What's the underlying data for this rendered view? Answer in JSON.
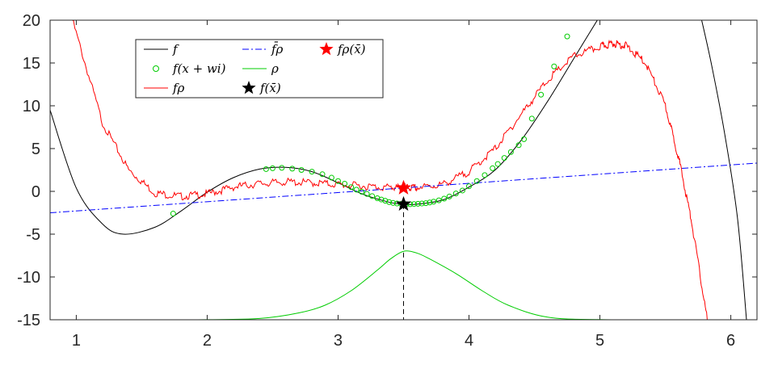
{
  "chart_data": {
    "type": "line",
    "title": "",
    "xlabel": "",
    "ylabel": "",
    "xlim": [
      0.8,
      6.2
    ],
    "ylim": [
      -15,
      20
    ],
    "xticks": [
      1,
      2,
      3,
      4,
      5,
      6
    ],
    "yticks": [
      20,
      15,
      10,
      5,
      0,
      -5,
      -10,
      -15
    ],
    "grid": false,
    "legend_position": "top-left",
    "x_bar": 3.5,
    "f_at_x_bar": -1.5,
    "f_rho_at_x_bar": 0.4,
    "series": [
      {
        "name": "f",
        "color": "#000000",
        "style": "solid",
        "x": [
          0.8,
          1.0,
          1.2,
          1.36,
          1.6,
          1.8,
          2.0,
          2.2,
          2.4,
          2.6,
          2.8,
          3.0,
          3.2,
          3.4,
          3.5,
          3.6,
          3.8,
          4.0,
          4.2,
          4.4,
          4.6,
          4.8,
          5.0
        ],
        "y": [
          9.5,
          0.4,
          -3.8,
          -5.0,
          -4.2,
          -2.3,
          -0.1,
          1.6,
          2.6,
          2.8,
          2.3,
          1.0,
          -0.4,
          -1.3,
          -1.5,
          -1.5,
          -1.0,
          0.5,
          2.5,
          6.0,
          10.5,
          15.5,
          20.5
        ]
      },
      {
        "name": "f",
        "color": "#000000",
        "style": "solid",
        "x": [
          5.77,
          5.85,
          5.95,
          6.05,
          6.12
        ],
        "y": [
          20.5,
          15.0,
          7.0,
          -3.0,
          -15.0
        ]
      },
      {
        "name": "f_ρ",
        "color": "#ff0000",
        "style": "solid",
        "x": [
          0.97,
          1.2,
          1.4,
          1.6,
          1.8,
          2.0,
          2.2,
          2.4,
          2.6,
          2.8,
          3.0,
          3.2,
          3.4,
          3.5,
          3.6,
          3.8,
          4.0,
          4.2,
          4.4,
          4.6,
          4.8,
          5.0,
          5.1,
          5.2,
          5.35,
          5.5,
          5.6,
          5.7,
          5.82
        ],
        "y": [
          20.0,
          8.0,
          2.5,
          -0.2,
          -0.6,
          -0.3,
          0.5,
          0.9,
          1.1,
          1.0,
          0.8,
          0.6,
          0.45,
          0.4,
          0.4,
          0.8,
          2.3,
          5.0,
          9.0,
          13.0,
          15.8,
          16.9,
          17.3,
          17.0,
          15.0,
          10.0,
          4.0,
          -3.5,
          -15.0
        ]
      },
      {
        "name": "f̄_ρ",
        "color": "#0000ff",
        "style": "dashdot",
        "x": [
          0.8,
          6.2
        ],
        "y": [
          -2.5,
          3.3
        ]
      },
      {
        "name": "ρ",
        "color": "#00cc00",
        "style": "solid",
        "x": [
          0.8,
          1.5,
          2.0,
          2.4,
          2.7,
          2.9,
          3.1,
          3.3,
          3.4,
          3.5,
          3.6,
          3.7,
          3.9,
          4.1,
          4.3,
          4.6,
          5.0,
          5.5,
          6.2
        ],
        "y": [
          -15.0,
          -15.0,
          -14.99,
          -14.85,
          -14.2,
          -13.3,
          -11.6,
          -9.2,
          -7.9,
          -7.0,
          -7.2,
          -7.9,
          -9.6,
          -11.6,
          -13.3,
          -14.7,
          -14.98,
          -15.0,
          -15.0
        ]
      },
      {
        "name": "f(x + w_i)",
        "color": "#00cc00",
        "style": "markers",
        "x": [
          1.74,
          2.45,
          2.5,
          2.57,
          2.65,
          2.72,
          2.8,
          2.88,
          2.95,
          3.0,
          3.05,
          3.1,
          3.14,
          3.18,
          3.22,
          3.26,
          3.3,
          3.33,
          3.36,
          3.39,
          3.42,
          3.45,
          3.48,
          3.5,
          3.52,
          3.55,
          3.58,
          3.61,
          3.64,
          3.67,
          3.7,
          3.73,
          3.77,
          3.81,
          3.85,
          3.9,
          3.95,
          4.0,
          4.06,
          4.12,
          4.18,
          4.22,
          4.27,
          4.32,
          4.38,
          4.42,
          4.48,
          4.55,
          4.65,
          4.75,
          4.86
        ],
        "y": [
          -2.6,
          2.6,
          2.7,
          2.75,
          2.65,
          2.5,
          2.3,
          2.0,
          1.6,
          1.2,
          0.9,
          0.5,
          0.2,
          -0.05,
          -0.3,
          -0.55,
          -0.8,
          -0.95,
          -1.1,
          -1.25,
          -1.35,
          -1.42,
          -1.47,
          -1.5,
          -1.5,
          -1.5,
          -1.48,
          -1.45,
          -1.42,
          -1.38,
          -1.3,
          -1.2,
          -1.05,
          -0.85,
          -0.6,
          -0.25,
          0.1,
          0.6,
          1.2,
          1.9,
          2.7,
          3.2,
          3.9,
          4.6,
          5.4,
          6.1,
          8.5,
          11.3,
          14.6,
          18.1,
          20.8
        ]
      }
    ],
    "points": [
      {
        "name": "f_ρ(x̄)",
        "x": 3.5,
        "y": 0.4,
        "color": "#ff0000",
        "marker": "star"
      },
      {
        "name": "f(x̄)",
        "x": 3.5,
        "y": -1.5,
        "color": "#000000",
        "marker": "star"
      }
    ],
    "legend": [
      {
        "label": "f",
        "color": "#000000",
        "kind": "line-solid"
      },
      {
        "label": "f̄ρ",
        "color": "#0000ff",
        "kind": "line-dashdot"
      },
      {
        "label": "fρ(x̄)",
        "color": "#ff0000",
        "kind": "star"
      },
      {
        "label": "f(x + wi)",
        "color": "#00cc00",
        "kind": "circle"
      },
      {
        "label": "ρ",
        "color": "#00cc00",
        "kind": "line-solid"
      },
      {
        "label": "fρ",
        "color": "#ff0000",
        "kind": "line-solid"
      },
      {
        "label": "f(x̄)",
        "color": "#000000",
        "kind": "star"
      }
    ]
  }
}
